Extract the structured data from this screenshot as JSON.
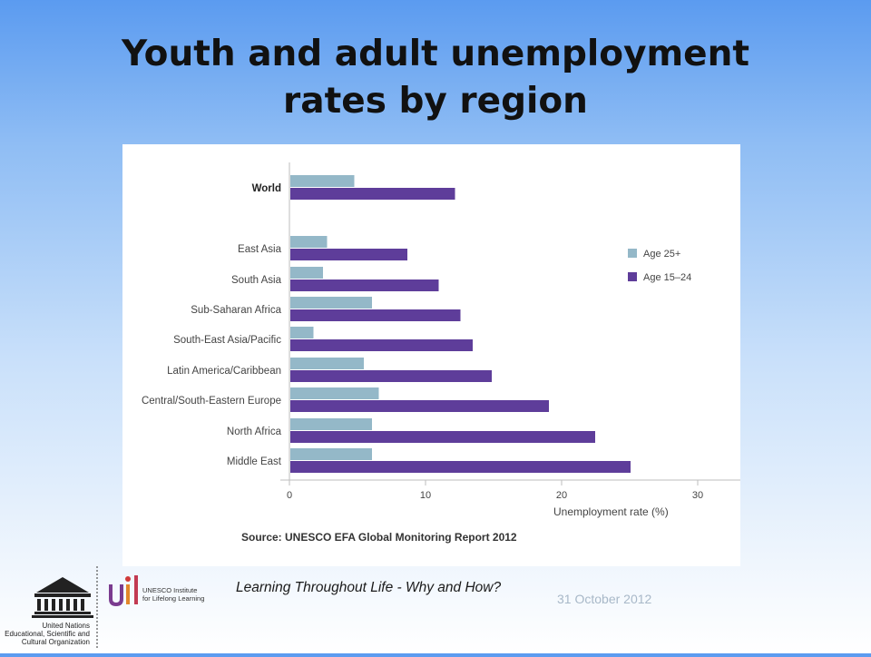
{
  "slide": {
    "title_line1": "Youth and adult unemployment",
    "title_line2": "rates by region",
    "footer_text": "Learning Throughout Life - Why and How?",
    "date": "31 October 2012"
  },
  "logos": {
    "unesco_lines": [
      "United Nations",
      "Educational, Scientific and",
      "Cultural Organization"
    ],
    "uil_lines": [
      "UNESCO Institute",
      "for Lifelong Learning"
    ]
  },
  "colors": {
    "age_25_plus": "#94b8c8",
    "age_15_24": "#5e3d9a",
    "axis": "#bdbdbd",
    "text": "#444444"
  },
  "chart_data": {
    "type": "bar",
    "orientation": "horizontal",
    "categories": [
      "World",
      "East Asia",
      "South Asia",
      "Sub-Saharan Africa",
      "South-East Asia/Pacific",
      "Latin America/Caribbean",
      "Central/South-Eastern Europe",
      "North Africa",
      "Middle East"
    ],
    "bold_categories": [
      "World"
    ],
    "series": [
      {
        "name": "Age 25+",
        "values": [
          4.7,
          2.7,
          2.4,
          6.0,
          1.7,
          5.4,
          6.5,
          6.0,
          6.0
        ]
      },
      {
        "name": "Age 15–24",
        "values": [
          12.1,
          8.6,
          10.9,
          12.5,
          13.4,
          14.8,
          19.0,
          22.4,
          25.0
        ]
      }
    ],
    "xlabel": "Unemployment rate (%)",
    "xlim": [
      0,
      30
    ],
    "xticks": [
      0,
      10,
      20,
      30
    ],
    "legend_position": "right",
    "grid": false,
    "source": "Source: UNESCO EFA Global Monitoring Report 2012"
  }
}
